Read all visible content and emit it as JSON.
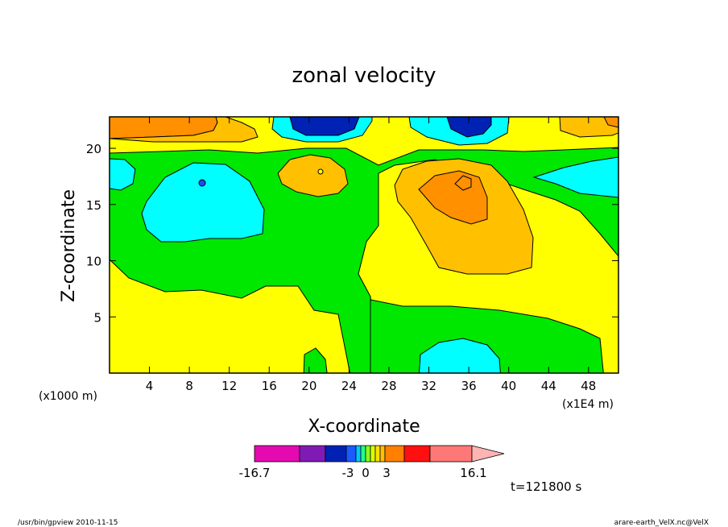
{
  "chart_data": {
    "type": "heatmap",
    "title": "zonal velocity",
    "xlabel": "X-coordinate",
    "ylabel": "Z-coordinate",
    "x_unit": "(x1E4 m)",
    "y_unit": "(x1000 m)",
    "xlim": [
      0,
      51
    ],
    "ylim": [
      0,
      22.8
    ],
    "x_ticks": [
      "4",
      "8",
      "12",
      "16",
      "20",
      "24",
      "28",
      "32",
      "36",
      "40",
      "44",
      "48"
    ],
    "y_ticks": [
      "5",
      "10",
      "15",
      "20"
    ],
    "colorbar": {
      "labels": [
        "-16.7",
        "-3",
        "0",
        "3",
        "16.1"
      ],
      "colors": [
        "#e40ab0",
        "#7f1ab4",
        "#0022b4",
        "#1a5aff",
        "#00c8ff",
        "#22ff88",
        "#88ff22",
        "#ddff00",
        "#ffe000",
        "#ffc000",
        "#ff8000",
        "#ff1010",
        "#ff7878",
        "#ffb4b4"
      ],
      "triangle_end": "right"
    },
    "annotation_time": "t=121800 s",
    "regions": [
      {
        "level": "0 to 1",
        "color": "#ffff00",
        "description": "background"
      },
      {
        "level": "-1 to 0",
        "color": "#00e800",
        "description": "green band"
      },
      {
        "level": "-3 to -1",
        "color": "#00ffff",
        "description": "cyan cells"
      },
      {
        "level": "< -6",
        "color": "#0022b4",
        "description": "blue cores near top at x=21, x=36"
      },
      {
        "level": "1 to 2",
        "color": "#ffc000",
        "description": "orange-yellow cells"
      },
      {
        "level": "2 to 3",
        "color": "#ff9000",
        "description": "orange cells"
      }
    ]
  },
  "footer": {
    "left": "/usr/bin/gpview   2010-11-15",
    "right": "arare-earth_VelX.nc@VelX"
  }
}
